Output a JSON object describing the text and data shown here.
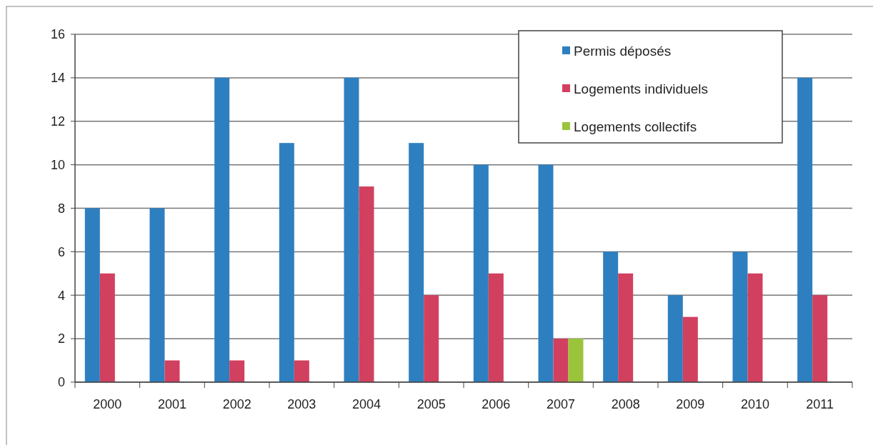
{
  "chart_data": {
    "type": "bar",
    "categories": [
      "2000",
      "2001",
      "2002",
      "2003",
      "2004",
      "2005",
      "2006",
      "2007",
      "2008",
      "2009",
      "2010",
      "2011"
    ],
    "series": [
      {
        "name": "Permis déposés",
        "color": "#2e7fc0",
        "values": [
          8,
          8,
          14,
          11,
          14,
          11,
          10,
          10,
          6,
          4,
          6,
          14
        ]
      },
      {
        "name": "Logements individuels",
        "color": "#d2405f",
        "values": [
          5,
          1,
          1,
          1,
          9,
          4,
          5,
          2,
          5,
          3,
          5,
          4
        ]
      },
      {
        "name": "Logements collectifs",
        "color": "#9bc43a",
        "values": [
          0,
          0,
          0,
          0,
          0,
          0,
          0,
          2,
          0,
          0,
          0,
          0
        ]
      }
    ],
    "ylim": [
      0,
      16
    ],
    "yticks": [
      0,
      2,
      4,
      6,
      8,
      10,
      12,
      14,
      16
    ],
    "grid": "y",
    "legend": "top right"
  }
}
